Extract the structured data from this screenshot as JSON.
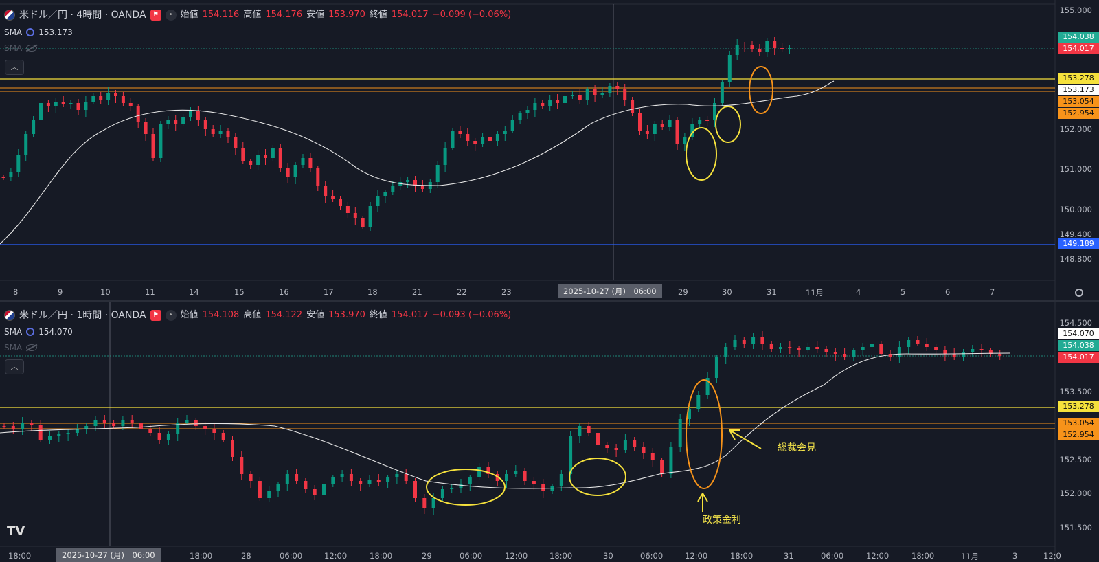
{
  "colors": {
    "bg": "#161a25",
    "up": "#089981",
    "down": "#f23645",
    "sma": "#e6e6e6",
    "yellow": "#f5e13c",
    "orange": "#f7931a",
    "blue": "#2962ff",
    "green_tag": "#22ab94",
    "red_tag": "#f23645"
  },
  "top_panel": {
    "symbol": "米ドル／円 · 4時間 · OANDA",
    "ohlc": [
      {
        "k": "始値",
        "v": "154.116"
      },
      {
        "k": "高値",
        "v": "154.176"
      },
      {
        "k": "安値",
        "v": "153.970"
      },
      {
        "k": "終値",
        "v": "154.017"
      }
    ],
    "change": "−0.099 (−0.06%)",
    "sma_label": "SMA",
    "sma_value": "153.173",
    "sma2_label": "SMA",
    "price_axis": [
      "155.000",
      "152.000",
      "151.000",
      "150.000",
      "149.400",
      "148.800"
    ],
    "price_tags": [
      {
        "text": "154.038",
        "style": "green"
      },
      {
        "text": "154.017",
        "style": "red"
      },
      {
        "text": "153.278",
        "style": "yellow"
      },
      {
        "text": "153.173",
        "style": "white"
      },
      {
        "text": "153.054",
        "style": "orange"
      },
      {
        "text": "152.954",
        "style": "orange"
      },
      {
        "text": "149.189",
        "style": "blue"
      }
    ],
    "time_axis": [
      "8",
      "9",
      "10",
      "11",
      "14",
      "15",
      "16",
      "17",
      "18",
      "21",
      "22",
      "23",
      "29",
      "30",
      "31",
      "11月",
      "4",
      "5",
      "6",
      "7"
    ],
    "crosshair_date": "2025-10-27 (月)　06:00"
  },
  "bottom_panel": {
    "symbol": "米ドル／円 · 1時間 · OANDA",
    "ohlc": [
      {
        "k": "始値",
        "v": "154.108"
      },
      {
        "k": "高値",
        "v": "154.122"
      },
      {
        "k": "安値",
        "v": "153.970"
      },
      {
        "k": "終値",
        "v": "154.017"
      }
    ],
    "change": "−0.093 (−0.06%)",
    "sma_label": "SMA",
    "sma_value": "154.070",
    "sma2_label": "SMA",
    "price_axis": [
      "154.500",
      "153.500",
      "152.500",
      "152.000",
      "151.500"
    ],
    "price_tags": [
      {
        "text": "154.070",
        "style": "white"
      },
      {
        "text": "154.038",
        "style": "green"
      },
      {
        "text": "154.017",
        "style": "red"
      },
      {
        "text": "153.278",
        "style": "yellow"
      },
      {
        "text": "153.054",
        "style": "orange"
      },
      {
        "text": "152.954",
        "style": "orange"
      }
    ],
    "time_axis": [
      "18:00",
      "18:00",
      "28",
      "06:00",
      "12:00",
      "18:00",
      "29",
      "06:00",
      "12:00",
      "18:00",
      "30",
      "06:00",
      "12:00",
      "18:00",
      "31",
      "06:00",
      "12:00",
      "18:00",
      "11月",
      "3",
      "12:0"
    ],
    "crosshair_date": "2025-10-27 (月)　06:00",
    "annotations": {
      "governor": "総裁会見",
      "policy": "政策金利"
    }
  },
  "logo": "TV"
}
